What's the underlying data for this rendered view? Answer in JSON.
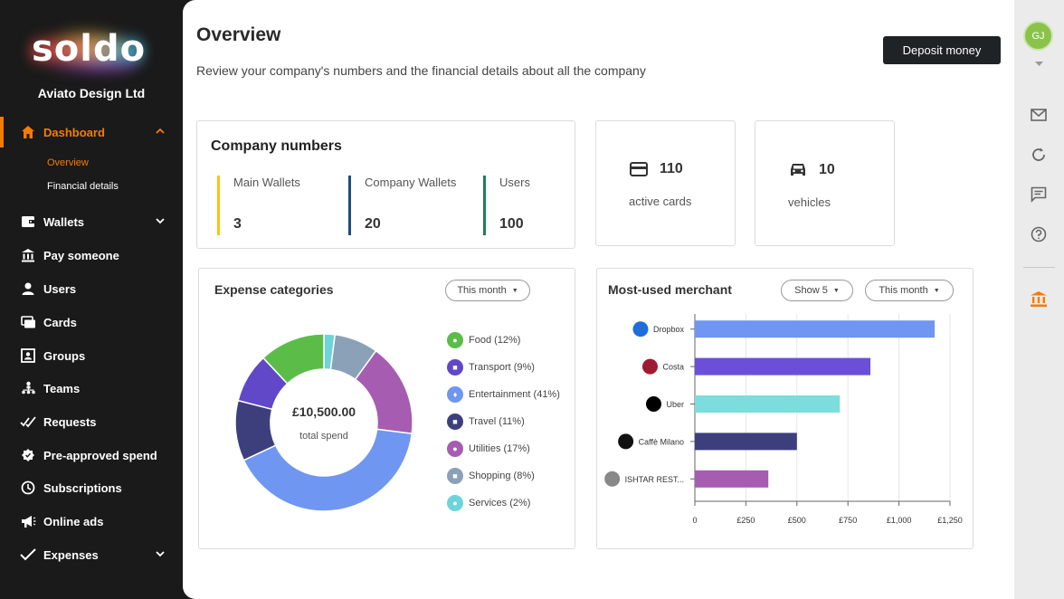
{
  "brand": {
    "logo_text": "soldo",
    "company": "Aviato Design Ltd"
  },
  "sidebar": {
    "items": [
      {
        "label": "Dashboard",
        "icon": "home-icon"
      },
      {
        "label": "Wallets",
        "icon": "wallet-icon"
      },
      {
        "label": "Pay someone",
        "icon": "bank-icon"
      },
      {
        "label": "Users",
        "icon": "user-icon"
      },
      {
        "label": "Cards",
        "icon": "cards-icon"
      },
      {
        "label": "Groups",
        "icon": "groups-icon"
      },
      {
        "label": "Teams",
        "icon": "teams-icon"
      },
      {
        "label": "Requests",
        "icon": "requests-icon"
      },
      {
        "label": "Pre-approved spend",
        "icon": "tag-icon"
      },
      {
        "label": "Subscriptions",
        "icon": "clock-icon"
      },
      {
        "label": "Online ads",
        "icon": "megaphone-icon"
      },
      {
        "label": "Expenses",
        "icon": "checkmark-icon"
      }
    ],
    "sub_items": [
      {
        "label": "Overview"
      },
      {
        "label": "Financial details"
      }
    ]
  },
  "header": {
    "title": "Overview",
    "subtitle": "Review your company's numbers and the financial details about all the company",
    "deposit_label": "Deposit money"
  },
  "company_numbers": {
    "title": "Company numbers",
    "stats": [
      {
        "label": "Main Wallets",
        "value": "3",
        "color": "#f5c518"
      },
      {
        "label": "Company Wallets",
        "value": "20",
        "color": "#1f4e79"
      },
      {
        "label": "Users",
        "value": "100",
        "color": "#1b7f5a"
      }
    ]
  },
  "cards_stat": {
    "value": "110",
    "label": "active cards"
  },
  "vehicles_stat": {
    "value": "10",
    "label": "vehicles"
  },
  "expense": {
    "title": "Expense categories",
    "period": "This month",
    "total": "£10,500.00",
    "total_label": "total spend",
    "legend": [
      {
        "label": "Food (12%)",
        "color": "#5bbd48"
      },
      {
        "label": "Transport (9%)",
        "color": "#6048c8"
      },
      {
        "label": "Entertainment (41%)",
        "color": "#6f96f0"
      },
      {
        "label": "Travel (11%)",
        "color": "#3d3f7d"
      },
      {
        "label": "Utilities (17%)",
        "color": "#a55cb1"
      },
      {
        "label": "Shopping (8%)",
        "color": "#8aa1b8"
      },
      {
        "label": "Services (2%)",
        "color": "#6ed4dc"
      }
    ]
  },
  "merchant": {
    "title": "Most-used merchant",
    "show_label": "Show 5",
    "period": "This month"
  },
  "rail": {
    "avatar_initials": "GJ"
  },
  "chart_data": [
    {
      "type": "pie",
      "title": "Expense categories",
      "categories": [
        "Food",
        "Transport",
        "Entertainment",
        "Travel",
        "Utilities",
        "Shopping",
        "Services"
      ],
      "values": [
        12,
        9,
        41,
        11,
        17,
        8,
        2
      ],
      "colors": [
        "#5bbd48",
        "#6048c8",
        "#6f96f0",
        "#3d3f7d",
        "#a55cb1",
        "#8aa1b8",
        "#6ed4dc"
      ],
      "slice_order_clockwise_from_top": [
        "Services",
        "Shopping",
        "Utilities",
        "Entertainment",
        "Travel",
        "Transport",
        "Food"
      ]
    },
    {
      "type": "bar",
      "orientation": "horizontal",
      "title": "Most-used merchant",
      "categories": [
        "Dropbox",
        "Costa",
        "Uber",
        "Caffè Milano",
        "ISHTAR REST..."
      ],
      "values": [
        1175,
        860,
        710,
        500,
        360
      ],
      "colors": [
        "#6f96f0",
        "#6b4fd8",
        "#7ddcdc",
        "#3d3f7d",
        "#a55cb1"
      ],
      "logo_colors": [
        "#1f6ddb",
        "#9e1b32",
        "#000000",
        "#111111",
        "#888888"
      ],
      "xlim": [
        0,
        1250
      ],
      "ticks": [
        0,
        250,
        500,
        750,
        1000,
        1250
      ],
      "tick_labels": [
        "0",
        "£250",
        "£500",
        "£750",
        "£1,000",
        "£1,250"
      ],
      "grid": true
    }
  ]
}
